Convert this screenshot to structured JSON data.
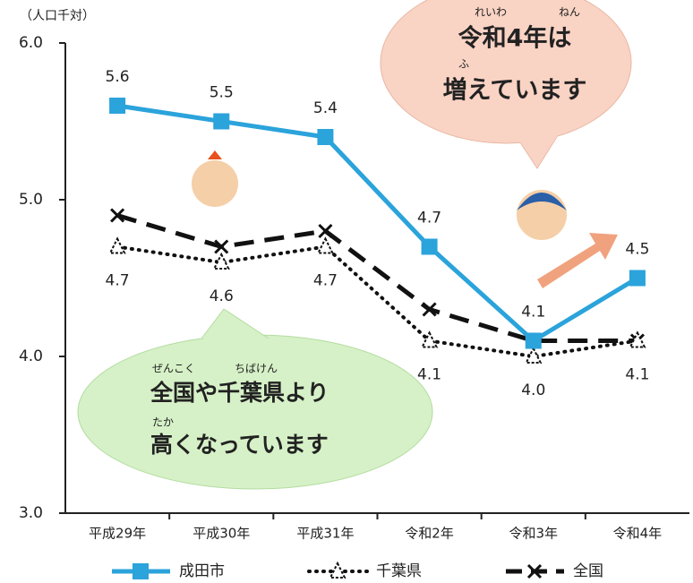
{
  "chart_data": {
    "type": "line",
    "y_unit": "（人口千対）",
    "categories": [
      "平成29年",
      "平成30年",
      "平成31年",
      "令和2年",
      "令和3年",
      "令和4年"
    ],
    "ylim": [
      3,
      6
    ],
    "yticks": [
      {
        "value": 3,
        "label": "3.0"
      },
      {
        "value": 4,
        "label": "4.0"
      },
      {
        "value": 5,
        "label": "5.0"
      },
      {
        "value": 6,
        "label": "6.0"
      }
    ],
    "series": [
      {
        "name": "成田市",
        "color": "#2ba3db",
        "values": [
          5.6,
          5.5,
          5.4,
          4.7,
          4.1,
          4.5
        ],
        "value_labels": [
          "5.6",
          "5.5",
          "5.4",
          "4.7",
          "4.1",
          "4.5"
        ]
      },
      {
        "name": "千葉県",
        "color": "#111111",
        "values": [
          4.7,
          4.6,
          4.7,
          4.1,
          4.0,
          4.1
        ],
        "value_labels": [
          "4.7",
          "4.6",
          "4.7",
          "4.1",
          "4.0",
          "4.1"
        ]
      },
      {
        "name": "全国",
        "color": "#111111",
        "values": [
          4.9,
          4.7,
          4.8,
          4.3,
          4.1,
          4.1
        ]
      }
    ],
    "annotations": [
      {
        "lines": [
          "令和4年は",
          "増えています"
        ],
        "ruby": [
          "れいわ",
          "ねん",
          "ふ"
        ]
      },
      {
        "lines": [
          "全国や千葉県より",
          "高くなっています"
        ],
        "ruby": [
          "ぜんこく",
          "ちばけん",
          "たか"
        ]
      }
    ]
  }
}
